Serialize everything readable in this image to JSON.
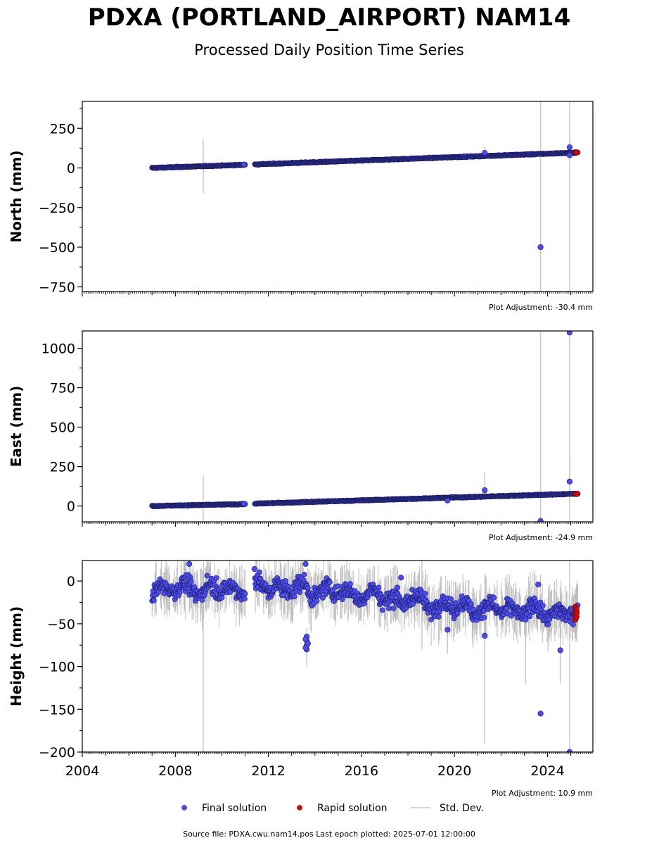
{
  "chart_data": {
    "type": "scatter",
    "title": "PDXA (PORTLAND_AIRPORT) NAM14",
    "subtitle": "Processed Daily Position Time Series",
    "x_ticks": [
      "2004",
      "2008",
      "2012",
      "2016",
      "2020",
      "2024"
    ],
    "xlim": [
      2004.0,
      2025.95
    ],
    "legend": {
      "placement": "bottom-center",
      "items": [
        {
          "label": "Final solution",
          "color": "#4b4bf0",
          "kind": "point"
        },
        {
          "label": "Rapid solution",
          "color": "#e00000",
          "kind": "point"
        },
        {
          "label": "Std. Dev.",
          "color": "#c8c8c8",
          "kind": "line"
        }
      ]
    },
    "colors": {
      "final": "#4b4bf0",
      "rapid": "#e00000",
      "stddev": "#c8c8c8"
    },
    "source_text": "Source file: PDXA.cwu.nam14.pos  Last epoch plotted: 2025-07-01 12:00:00",
    "panels": [
      {
        "id": "north",
        "ylabel": "North (mm)",
        "ylim": [
          -780,
          420
        ],
        "y_ticks": [
          250,
          0,
          -250,
          -500,
          -750
        ],
        "y_tick_labels": [
          "250",
          "0",
          "−250",
          "−500",
          "−750"
        ],
        "adjustment": "Plot Adjustment: -30.4 mm",
        "trend": [
          [
            2007.0,
            0
          ],
          [
            2011.0,
            20
          ],
          [
            2011.4,
            22
          ],
          [
            2025.3,
            97
          ]
        ],
        "gaps": [
          [
            2011.0,
            2011.4
          ]
        ],
        "noise_sd": 2,
        "outliers": [
          [
            2023.7,
            -500
          ],
          [
            2024.95,
            130
          ],
          [
            2021.3,
            95
          ],
          [
            2024.95,
            80
          ],
          [
            2010.95,
            22
          ]
        ],
        "sigma_bars": [
          [
            2009.2,
            -160,
            180
          ],
          [
            2023.7,
            -780,
            420
          ],
          [
            2024.95,
            -780,
            420
          ],
          [
            2021.3,
            60,
            130
          ],
          [
            2024.95,
            60,
            190
          ]
        ],
        "rapid": [
          [
            2025.2,
            98
          ],
          [
            2025.25,
            97
          ]
        ]
      },
      {
        "id": "east",
        "ylabel": "East (mm)",
        "ylim": [
          -100,
          1110
        ],
        "y_ticks": [
          1000,
          750,
          500,
          250,
          0
        ],
        "y_tick_labels": [
          "1000",
          "750",
          "500",
          "250",
          "0"
        ],
        "adjustment": "Plot Adjustment: -24.9 mm",
        "trend": [
          [
            2007.0,
            0
          ],
          [
            2011.0,
            12
          ],
          [
            2011.4,
            15
          ],
          [
            2025.3,
            78
          ]
        ],
        "gaps": [
          [
            2011.0,
            2011.4
          ]
        ],
        "noise_sd": 2,
        "outliers": [
          [
            2024.95,
            1100
          ],
          [
            2024.95,
            155
          ],
          [
            2021.3,
            100
          ],
          [
            2023.7,
            -95
          ],
          [
            2019.7,
            35
          ],
          [
            2010.95,
            15
          ]
        ],
        "sigma_bars": [
          [
            2009.2,
            -100,
            190
          ],
          [
            2023.7,
            -100,
            1110
          ],
          [
            2024.95,
            -100,
            1110
          ],
          [
            2021.3,
            40,
            210
          ],
          [
            2024.95,
            30,
            330
          ]
        ],
        "rapid": [
          [
            2025.2,
            78
          ],
          [
            2025.25,
            77
          ]
        ]
      },
      {
        "id": "height",
        "ylabel": "Height (mm)",
        "ylim": [
          -200,
          24
        ],
        "y_ticks": [
          0,
          -50,
          -100,
          -150,
          -200
        ],
        "y_tick_labels": [
          "0",
          "−50",
          "−100",
          "−150",
          "−200"
        ],
        "adjustment": "Plot Adjustment: 10.9 mm",
        "trend": [
          [
            2007.0,
            -8
          ],
          [
            2011.0,
            -10
          ],
          [
            2011.4,
            -5
          ],
          [
            2016.0,
            -15
          ],
          [
            2020.0,
            -30
          ],
          [
            2025.3,
            -38
          ]
        ],
        "gaps": [
          [
            2011.0,
            2011.4
          ]
        ],
        "noise_sd": 7,
        "outliers": [
          [
            2023.7,
            -155
          ],
          [
            2024.95,
            -200
          ],
          [
            2024.55,
            -81
          ],
          [
            2021.3,
            -64
          ],
          [
            2019.7,
            -57
          ],
          [
            2013.65,
            -65
          ],
          [
            2013.65,
            -70
          ],
          [
            2013.65,
            -75
          ],
          [
            2013.65,
            -80
          ],
          [
            2013.6,
            -68
          ],
          [
            2013.6,
            -78
          ],
          [
            2013.7,
            -73
          ],
          [
            2011.4,
            14
          ],
          [
            2013.6,
            20
          ],
          [
            2008.6,
            20
          ],
          [
            2017.7,
            4
          ],
          [
            2023.6,
            -4
          ]
        ],
        "sigma_bars": [
          [
            2009.2,
            -200,
            5
          ],
          [
            2018.6,
            -80,
            24
          ],
          [
            2021.3,
            -190,
            -20
          ],
          [
            2023.05,
            -120,
            -30
          ],
          [
            2024.55,
            -120,
            -20
          ],
          [
            2024.95,
            -200,
            24
          ],
          [
            2019.7,
            -85,
            -30
          ],
          [
            2013.65,
            -100,
            -55
          ]
        ],
        "rapid": [
          [
            2025.2,
            -30
          ],
          [
            2025.2,
            -35
          ],
          [
            2025.2,
            -40
          ],
          [
            2025.2,
            -45
          ],
          [
            2025.25,
            -33
          ],
          [
            2025.25,
            -38
          ],
          [
            2025.25,
            -42
          ]
        ]
      }
    ]
  }
}
